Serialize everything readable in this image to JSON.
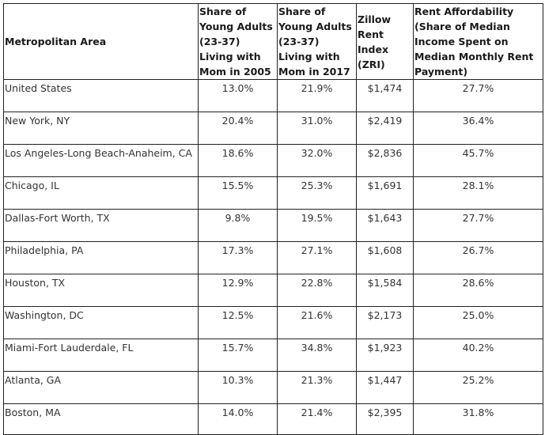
{
  "table": {
    "headers": [
      "Metropolitan Area",
      "Share of Young Adults (23-37) Living with Mom in 2005",
      "Share of Young Adults (23-37) Living with Mom in 2017",
      "Zillow Rent Index (ZRI)",
      "Rent Affordability (Share of Median Income Spent on Median Monthly Rent Payment)"
    ],
    "rows": [
      [
        "United States",
        "13.0%",
        "21.9%",
        "$1,474",
        "27.7%"
      ],
      [
        "New York, NY",
        "20.4%",
        "31.0%",
        "$2,419",
        "36.4%"
      ],
      [
        "Los Angeles-Long Beach-Anaheim, CA",
        "18.6%",
        "32.0%",
        "$2,836",
        "45.7%"
      ],
      [
        "Chicago, IL",
        "15.5%",
        "25.3%",
        "$1,691",
        "28.1%"
      ],
      [
        "Dallas-Fort Worth, TX",
        "9.8%",
        "19.5%",
        "$1,643",
        "27.7%"
      ],
      [
        "Philadelphia, PA",
        "17.3%",
        "27.1%",
        "$1,608",
        "26.7%"
      ],
      [
        "Houston, TX",
        "12.9%",
        "22.8%",
        "$1,584",
        "28.6%"
      ],
      [
        "Washington, DC",
        "12.5%",
        "21.6%",
        "$2,173",
        "25.0%"
      ],
      [
        "Miami-Fort Lauderdale, FL",
        "15.7%",
        "34.8%",
        "$1,923",
        "40.2%"
      ],
      [
        "Atlanta, GA",
        "10.3%",
        "21.3%",
        "$1,447",
        "25.2%"
      ],
      [
        "Boston, MA",
        "14.0%",
        "21.4%",
        "$2,395",
        "31.8%"
      ]
    ]
  }
}
